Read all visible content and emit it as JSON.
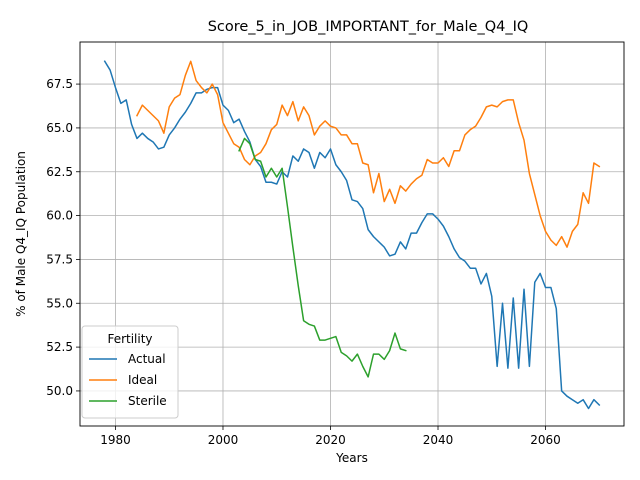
{
  "chart_data": {
    "type": "line",
    "title": "Score_5_in_JOB_IMPORTANT_for_Male_Q4_IQ",
    "xlabel": "Years",
    "ylabel": "% of Male Q4_IQ Population",
    "xlim": [
      1973.4,
      2074.6
    ],
    "ylim": [
      48.0,
      69.9
    ],
    "xticks": [
      1980,
      2000,
      2020,
      2040,
      2060
    ],
    "xtick_labels": [
      "1980",
      "2000",
      "2020",
      "2040",
      "2060"
    ],
    "yticks": [
      50.0,
      52.5,
      55.0,
      57.5,
      60.0,
      62.5,
      65.0,
      67.5
    ],
    "ytick_labels": [
      "50.0",
      "52.5",
      "55.0",
      "57.5",
      "60.0",
      "62.5",
      "65.0",
      "67.5"
    ],
    "grid": true,
    "legend": {
      "title": "Fertility",
      "placement": "lower-left"
    },
    "series": [
      {
        "name": "Actual",
        "color": "#1f77b4",
        "x": [
          1978,
          1979,
          1980,
          1981,
          1982,
          1983,
          1984,
          1985,
          1986,
          1987,
          1988,
          1989,
          1990,
          1991,
          1992,
          1993,
          1994,
          1995,
          1996,
          1997,
          1998,
          1999,
          2000,
          2001,
          2002,
          2003,
          2004,
          2005,
          2006,
          2007,
          2008,
          2009,
          2010,
          2011,
          2012,
          2013,
          2014,
          2015,
          2016,
          2017,
          2018,
          2019,
          2020,
          2021,
          2022,
          2023,
          2024,
          2025,
          2026,
          2027,
          2028,
          2029,
          2030,
          2031,
          2032,
          2033,
          2034,
          2035,
          2036,
          2037,
          2038,
          2039,
          2040,
          2041,
          2042,
          2043,
          2044,
          2045,
          2046,
          2047,
          2048,
          2049,
          2050,
          2051,
          2052,
          2053,
          2054,
          2055,
          2056,
          2057,
          2058,
          2059,
          2060,
          2061,
          2062,
          2063,
          2064,
          2065,
          2066,
          2067,
          2068,
          2069,
          2070
        ],
        "values": [
          68.8,
          68.3,
          67.3,
          66.4,
          66.6,
          65.2,
          64.4,
          64.7,
          64.4,
          64.2,
          63.8,
          63.9,
          64.6,
          65.0,
          65.5,
          65.9,
          66.4,
          67.0,
          67.0,
          67.2,
          67.3,
          67.3,
          66.3,
          66.0,
          65.3,
          65.5,
          64.8,
          64.2,
          63.2,
          62.8,
          61.9,
          61.9,
          61.8,
          62.5,
          62.2,
          63.4,
          63.1,
          63.8,
          63.6,
          62.7,
          63.6,
          63.3,
          63.8,
          62.9,
          62.5,
          62.0,
          60.9,
          60.8,
          60.4,
          59.2,
          58.8,
          58.5,
          58.2,
          57.7,
          57.8,
          58.5,
          58.1,
          59.0,
          59.0,
          59.6,
          60.1,
          60.1,
          59.8,
          59.4,
          58.8,
          58.1,
          57.6,
          57.4,
          57.0,
          57.0,
          56.1,
          56.7,
          55.4,
          51.4,
          55.0,
          51.3,
          55.3,
          51.3,
          55.8,
          51.4,
          56.2,
          56.7,
          55.9,
          55.9,
          54.7,
          50.0,
          49.7,
          49.5,
          49.3,
          49.5,
          49.0,
          49.5,
          49.2
        ]
      },
      {
        "name": "Ideal",
        "color": "#ff7f0e",
        "x": [
          1984,
          1985,
          1986,
          1987,
          1988,
          1989,
          1990,
          1991,
          1992,
          1993,
          1994,
          1995,
          1996,
          1997,
          1998,
          1999,
          2000,
          2001,
          2002,
          2003,
          2004,
          2005,
          2006,
          2007,
          2008,
          2009,
          2010,
          2011,
          2012,
          2013,
          2014,
          2015,
          2016,
          2017,
          2018,
          2019,
          2020,
          2021,
          2022,
          2023,
          2024,
          2025,
          2026,
          2027,
          2028,
          2029,
          2030,
          2031,
          2032,
          2033,
          2034,
          2035,
          2036,
          2037,
          2038,
          2039,
          2040,
          2041,
          2042,
          2043,
          2044,
          2045,
          2046,
          2047,
          2048,
          2049,
          2050,
          2051,
          2052,
          2053,
          2054,
          2055,
          2056,
          2057,
          2058,
          2059,
          2060,
          2061,
          2062,
          2063,
          2064,
          2065,
          2066,
          2067,
          2068,
          2069,
          2070
        ],
        "values": [
          65.7,
          66.3,
          66.0,
          65.7,
          65.4,
          64.7,
          66.2,
          66.7,
          66.9,
          68.0,
          68.8,
          67.7,
          67.3,
          67.0,
          67.5,
          66.9,
          65.3,
          64.7,
          64.1,
          63.9,
          63.2,
          62.9,
          63.4,
          63.6,
          64.1,
          64.9,
          65.2,
          66.3,
          65.7,
          66.5,
          65.4,
          66.2,
          65.7,
          64.6,
          65.1,
          65.4,
          65.1,
          65.0,
          64.6,
          64.6,
          64.1,
          64.1,
          63.0,
          62.9,
          61.3,
          62.4,
          60.8,
          61.5,
          60.7,
          61.7,
          61.4,
          61.8,
          62.1,
          62.3,
          63.2,
          63.0,
          63.0,
          63.3,
          62.8,
          63.7,
          63.7,
          64.6,
          64.9,
          65.1,
          65.6,
          66.2,
          66.3,
          66.2,
          66.5,
          66.6,
          66.6,
          65.3,
          64.3,
          62.4,
          61.2,
          60.0,
          59.1,
          58.6,
          58.3,
          58.8,
          58.2,
          59.1,
          59.5,
          61.3,
          60.7,
          63.0,
          62.8
        ]
      },
      {
        "name": "Sterile",
        "color": "#2ca02c",
        "x": [
          2003,
          2004,
          2005,
          2006,
          2007,
          2008,
          2009,
          2010,
          2011,
          2012,
          2013,
          2014,
          2015,
          2016,
          2017,
          2018,
          2019,
          2020,
          2021,
          2022,
          2023,
          2024,
          2025,
          2026,
          2027,
          2028,
          2029,
          2030,
          2031,
          2032,
          2033,
          2034
        ],
        "values": [
          63.7,
          64.4,
          64.1,
          63.2,
          63.1,
          62.2,
          62.7,
          62.2,
          62.7,
          60.5,
          58.2,
          56.0,
          54.0,
          53.8,
          53.7,
          52.9,
          52.9,
          53.0,
          53.1,
          52.2,
          52.0,
          51.7,
          52.1,
          51.4,
          50.8,
          52.1,
          52.1,
          51.8,
          52.3,
          53.3,
          52.4,
          52.3
        ]
      }
    ]
  }
}
